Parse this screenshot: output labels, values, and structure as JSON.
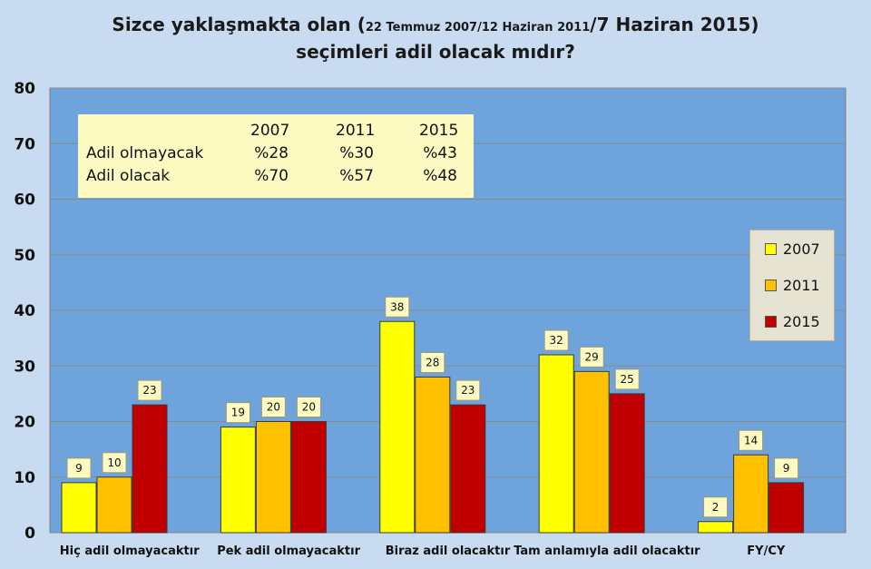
{
  "title": {
    "part1": "Sizce yaklaşmakta olan (",
    "part2": "22 Temmuz 2007/12  Haziran 2011",
    "part3": "/7 Haziran 2015)",
    "line2": "seçimleri adil olacak mıdır?"
  },
  "info_table": {
    "headers": [
      "2007",
      "2011",
      "2015"
    ],
    "rows": [
      {
        "label": "Adil olmayacak",
        "values": [
          "%28",
          "%30",
          "%43"
        ]
      },
      {
        "label": "Adil olacak",
        "values": [
          "%70",
          "%57",
          "%48"
        ]
      }
    ]
  },
  "chart_data": {
    "type": "bar",
    "title": "Sizce yaklaşmakta olan (22 Temmuz 2007/12 Haziran 2011/7 Haziran 2015) seçimleri adil olacak mıdır?",
    "categories": [
      "Hiç adil olmayacaktır",
      "Pek adil olmayacaktır",
      "Biraz adil olacaktır",
      "Tam anlamıyla adil olacaktır",
      "FY/CY"
    ],
    "series": [
      {
        "name": "2007",
        "values": [
          9,
          19,
          38,
          32,
          2
        ],
        "color": "#ffff00"
      },
      {
        "name": "2011",
        "values": [
          10,
          20,
          28,
          29,
          14
        ],
        "color": "#ffc000"
      },
      {
        "name": "2015",
        "values": [
          23,
          20,
          23,
          25,
          9
        ],
        "color": "#c00000"
      }
    ],
    "ylim": [
      0,
      80
    ],
    "yticks": [
      0,
      10,
      20,
      30,
      40,
      50,
      60,
      70,
      80
    ],
    "xlabel": "",
    "ylabel": "",
    "grid": "horizontal",
    "legend_position": "right",
    "plot_background": "#6fa3dc"
  }
}
